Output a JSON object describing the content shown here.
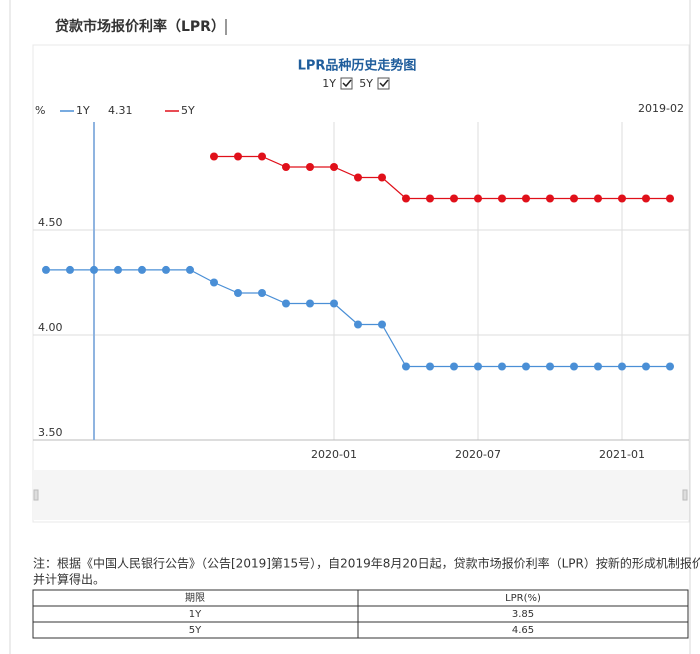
{
  "header": {
    "title": "贷款市场报价利率（LPR）"
  },
  "chart_data": {
    "type": "line",
    "title": "LPR品种历史走势图",
    "unit": "%",
    "toggles": [
      {
        "label": "1Y"
      },
      {
        "label": "5Y"
      }
    ],
    "hover": {
      "label": "2019-02",
      "value": 4.31
    },
    "categories": [
      null,
      null,
      null,
      null,
      null,
      null,
      null,
      null,
      null,
      null,
      null,
      null,
      "2020-01",
      null,
      null,
      null,
      null,
      null,
      "2020-07",
      null,
      null,
      null,
      null,
      null,
      "2021-01",
      null,
      null
    ],
    "series": [
      {
        "name": "1Y",
        "color": "#4a8fd6",
        "values": [
          4.31,
          4.31,
          4.31,
          4.31,
          4.31,
          4.31,
          4.31,
          4.25,
          4.2,
          4.2,
          4.15,
          4.15,
          4.15,
          4.05,
          4.05,
          3.85,
          3.85,
          3.85,
          3.85,
          3.85,
          3.85,
          3.85,
          3.85,
          3.85,
          3.85,
          3.85,
          3.85
        ]
      },
      {
        "name": "5Y",
        "color": "#e0101a",
        "values": [
          null,
          null,
          null,
          null,
          null,
          null,
          null,
          4.85,
          4.85,
          4.85,
          4.8,
          4.8,
          4.8,
          4.75,
          4.75,
          4.65,
          4.65,
          4.65,
          4.65,
          4.65,
          4.65,
          4.65,
          4.65,
          4.65,
          4.65,
          4.65,
          4.65
        ]
      }
    ],
    "ylim": [
      3.5,
      5.0
    ],
    "yticks": [
      {
        "value": 3.5,
        "label": "3.50"
      },
      {
        "value": 4.0,
        "label": "4.00"
      },
      {
        "value": 4.5,
        "label": "4.50"
      }
    ],
    "grid": true
  },
  "note": {
    "lines": [
      "注：根据《中国人民银行公告》（公告[2019]第15号），自2019年8月20日起，贷款市场报价利率（LPR）按新的形成机制报价",
      "并计算得出。"
    ]
  },
  "table": {
    "header": [
      "期限",
      "LPR(%)"
    ],
    "rows": [
      [
        "1Y",
        3.85
      ],
      [
        "5Y",
        4.65
      ]
    ]
  }
}
